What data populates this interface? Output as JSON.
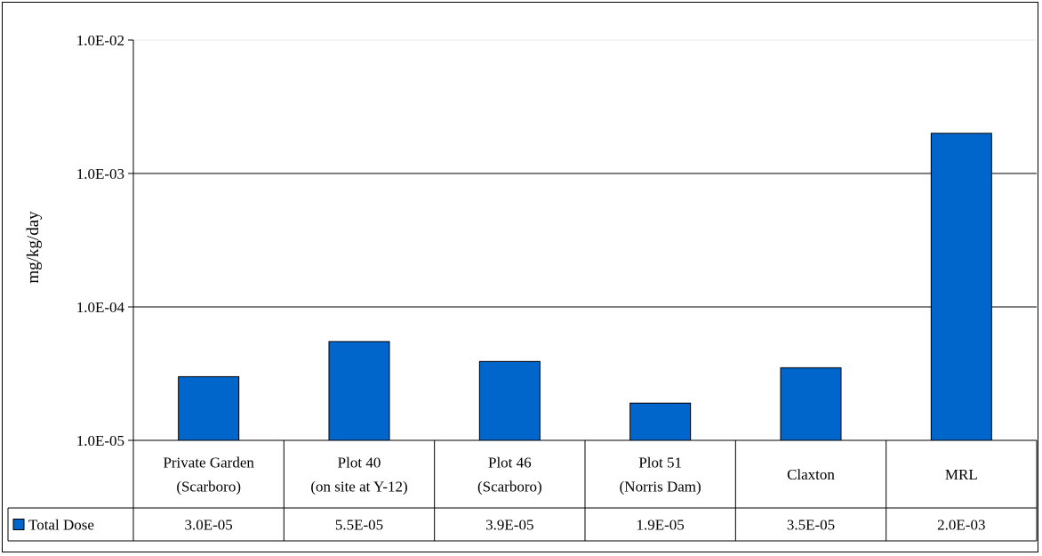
{
  "chart_data": {
    "type": "bar",
    "yscale": "log",
    "ylabel": "mg/kg/day",
    "ylim": [
      1e-05,
      0.01
    ],
    "yticks": [
      {
        "value": 1e-05,
        "label": "1.0E-05"
      },
      {
        "value": 0.0001,
        "label": "1.0E-04"
      },
      {
        "value": 0.001,
        "label": "1.0E-03"
      },
      {
        "value": 0.01,
        "label": "1.0E-02"
      }
    ],
    "grid": true,
    "categories": [
      [
        "Private Garden",
        "(Scarboro)"
      ],
      [
        "Plot 40",
        "(on site at Y-12)"
      ],
      [
        "Plot 46",
        "(Scarboro)"
      ],
      [
        "Plot 51",
        "(Norris Dam)"
      ],
      [
        "Claxton"
      ],
      [
        "MRL"
      ]
    ],
    "series": [
      {
        "name": "Total Dose",
        "color": "#0066CC",
        "values": [
          3e-05,
          5.5e-05,
          3.9e-05,
          1.9e-05,
          3.5e-05,
          0.002
        ],
        "value_labels": [
          "3.0E-05",
          "5.5E-05",
          "3.9E-05",
          "1.9E-05",
          "3.5E-05",
          "2.0E-03"
        ]
      }
    ],
    "legend": "data-table"
  }
}
